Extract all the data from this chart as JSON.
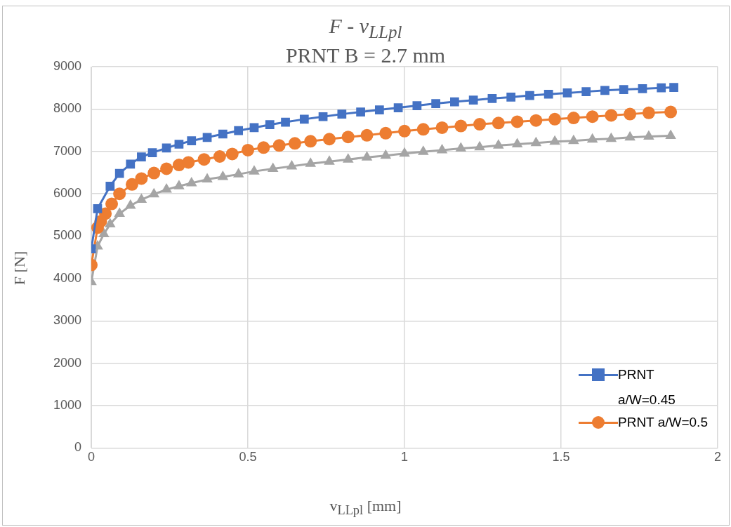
{
  "chart_data": {
    "type": "line",
    "title": "F - v$_{LLpl}$",
    "subtitle": "PRNT B = 2.7 mm",
    "xlabel": "v$_{LLpl}$ [mm]",
    "ylabel": "F [N]",
    "xlim": [
      0,
      2
    ],
    "xticks": [
      0,
      0.5,
      1,
      1.5,
      2
    ],
    "ylim": [
      0,
      9000
    ],
    "yticks": [
      0,
      1000,
      2000,
      3000,
      4000,
      5000,
      6000,
      7000,
      8000,
      9000
    ],
    "grid": true,
    "legend": "bottom right",
    "series": [
      {
        "name": "PRNT a/W=0.45",
        "color": "#4472c4",
        "marker": "square",
        "x": [
          0,
          0.02,
          0.06,
          0.09,
          0.125,
          0.16,
          0.195,
          0.24,
          0.28,
          0.32,
          0.37,
          0.42,
          0.47,
          0.52,
          0.57,
          0.62,
          0.68,
          0.74,
          0.8,
          0.86,
          0.92,
          0.98,
          1.04,
          1.1,
          1.16,
          1.22,
          1.28,
          1.34,
          1.4,
          1.46,
          1.52,
          1.58,
          1.64,
          1.7,
          1.76,
          1.82,
          1.86
        ],
        "values": [
          4700,
          5650,
          6180,
          6480,
          6700,
          6870,
          6970,
          7080,
          7170,
          7250,
          7330,
          7410,
          7490,
          7560,
          7630,
          7690,
          7760,
          7820,
          7880,
          7930,
          7980,
          8030,
          8080,
          8130,
          8170,
          8210,
          8250,
          8280,
          8320,
          8350,
          8380,
          8410,
          8440,
          8460,
          8480,
          8500,
          8510
        ]
      },
      {
        "name": "PRNT a/W=0.5",
        "color": "#ed7d31",
        "marker": "circle",
        "x": [
          0,
          0.02,
          0.03,
          0.045,
          0.065,
          0.09,
          0.13,
          0.16,
          0.2,
          0.24,
          0.28,
          0.31,
          0.36,
          0.41,
          0.45,
          0.5,
          0.55,
          0.6,
          0.65,
          0.7,
          0.76,
          0.82,
          0.88,
          0.94,
          1.0,
          1.06,
          1.12,
          1.18,
          1.24,
          1.3,
          1.36,
          1.42,
          1.48,
          1.54,
          1.6,
          1.66,
          1.72,
          1.78,
          1.85
        ],
        "values": [
          4320,
          5200,
          5350,
          5530,
          5760,
          6000,
          6220,
          6360,
          6490,
          6590,
          6680,
          6740,
          6810,
          6880,
          6940,
          7030,
          7090,
          7140,
          7190,
          7240,
          7290,
          7340,
          7380,
          7430,
          7480,
          7520,
          7560,
          7600,
          7640,
          7670,
          7700,
          7730,
          7760,
          7790,
          7820,
          7850,
          7880,
          7910,
          7930
        ]
      },
      {
        "color": "#a5a5a5",
        "marker": "triangle",
        "x": [
          0,
          0.02,
          0.04,
          0.06,
          0.09,
          0.125,
          0.16,
          0.2,
          0.24,
          0.28,
          0.32,
          0.37,
          0.42,
          0.47,
          0.52,
          0.58,
          0.64,
          0.7,
          0.76,
          0.82,
          0.88,
          0.94,
          1.0,
          1.06,
          1.12,
          1.18,
          1.24,
          1.3,
          1.36,
          1.42,
          1.48,
          1.54,
          1.6,
          1.66,
          1.72,
          1.78,
          1.85
        ],
        "values": [
          3920,
          4760,
          5050,
          5280,
          5530,
          5720,
          5860,
          5990,
          6100,
          6180,
          6250,
          6340,
          6400,
          6460,
          6530,
          6590,
          6650,
          6710,
          6760,
          6810,
          6860,
          6900,
          6950,
          6990,
          7030,
          7070,
          7100,
          7140,
          7170,
          7200,
          7230,
          7250,
          7280,
          7300,
          7330,
          7350,
          7370
        ]
      }
    ]
  }
}
